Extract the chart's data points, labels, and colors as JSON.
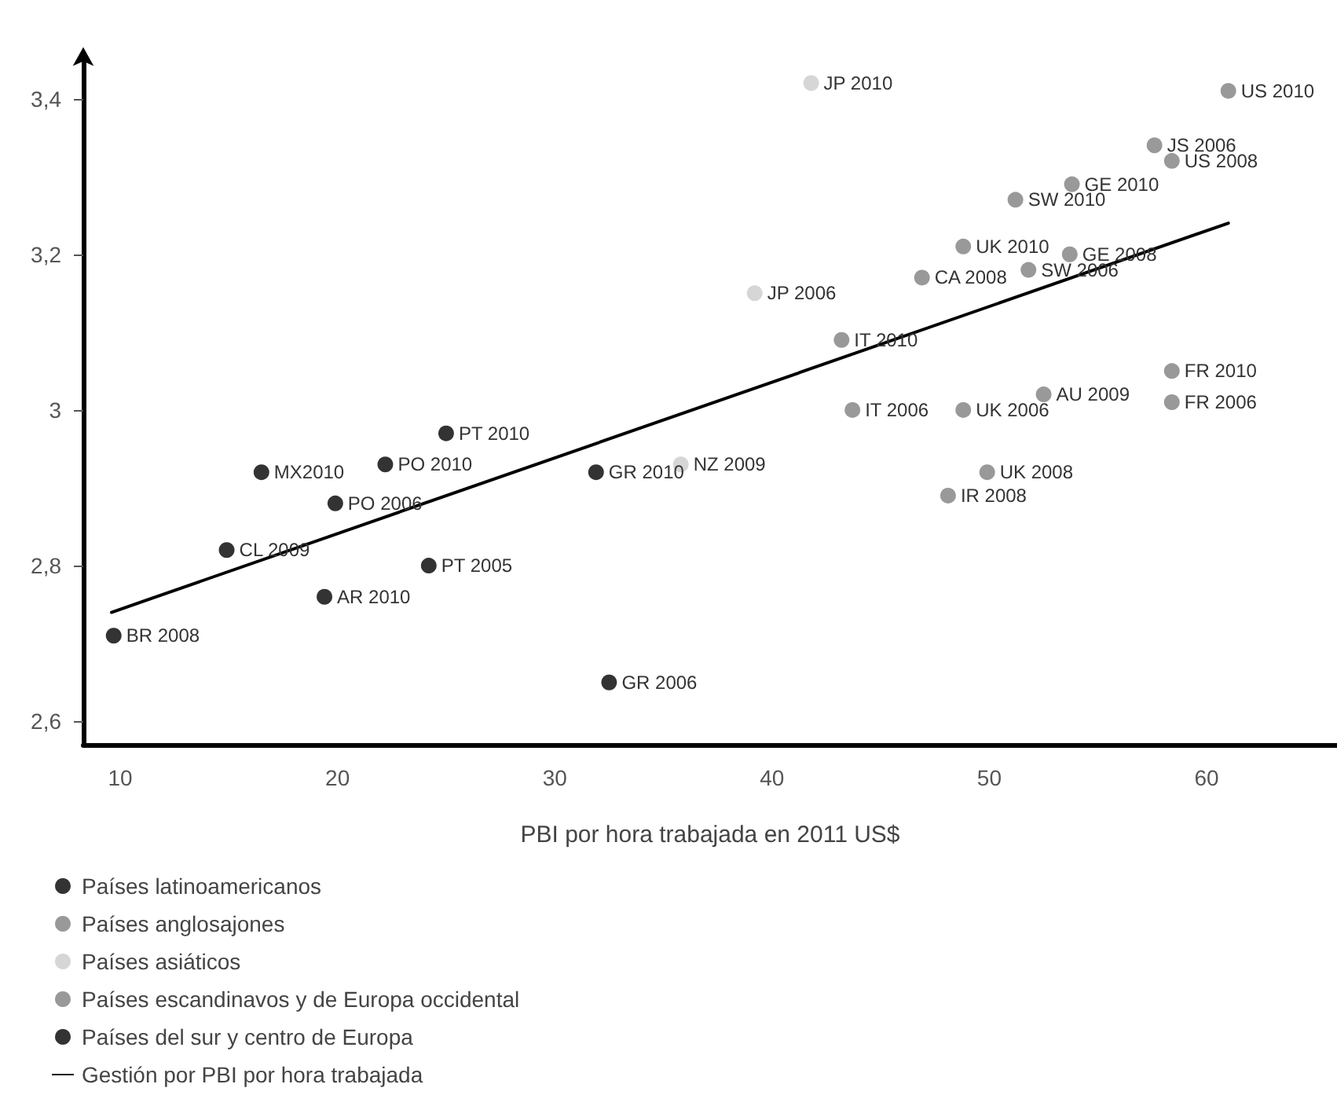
{
  "chart_data": {
    "type": "scatter",
    "xlabel": "PBI por hora trabajada en 2011 US$",
    "xlim": [
      8.3,
      66
    ],
    "xticks": [
      10,
      20,
      30,
      40,
      50,
      60
    ],
    "ylim": [
      2.57,
      3.45
    ],
    "yticks": [
      {
        "value": 2.6,
        "label": "2,6"
      },
      {
        "value": 2.8,
        "label": "2,8"
      },
      {
        "value": 3,
        "label": "3"
      },
      {
        "value": 3.2,
        "label": "3,2"
      },
      {
        "value": 3.4,
        "label": "3,4"
      }
    ],
    "grid": false,
    "legend": "bottom left",
    "marker": "circle",
    "series": [
      {
        "name": "Países latinoamericanos",
        "color": "#000000",
        "x": [
          9.7,
          14.9,
          16.5,
          19.4
        ],
        "values": [
          2.71,
          2.82,
          2.92,
          2.76
        ]
      },
      {
        "name": "Países anglosajones",
        "color": "#808080",
        "x": [
          61.0,
          57.6,
          58.4,
          48.8,
          46.9,
          52.5,
          48.8,
          49.9,
          48.1
        ],
        "values": [
          3.41,
          3.34,
          3.32,
          3.21,
          3.17,
          3.02,
          3.0,
          2.92,
          2.89
        ]
      },
      {
        "name": "Países asiáticos",
        "color": "#cccccc",
        "x": [
          41.8,
          39.2,
          35.8
        ],
        "values": [
          3.42,
          3.15,
          2.93
        ]
      },
      {
        "name": "Países escandinavos y de Europa occidental",
        "color": "#808080",
        "x": [
          53.8,
          51.2,
          53.7,
          51.8,
          43.2,
          58.4,
          58.4,
          43.7
        ],
        "values": [
          3.29,
          3.27,
          3.2,
          3.18,
          3.09,
          3.05,
          3.01,
          3.0
        ]
      },
      {
        "name": "Países del sur y centro de Europa",
        "color": "#000000",
        "x": [
          19.9,
          22.2,
          25.0,
          24.2,
          31.9,
          32.5
        ],
        "values": [
          2.88,
          2.93,
          2.97,
          2.8,
          2.92,
          2.65
        ]
      },
      {
        "name": "Gestión por PBI por hora trabajada",
        "type": "line",
        "color": "#000000",
        "marker": "none",
        "line_style": "solid",
        "x": [
          9.6,
          61.0
        ],
        "values": [
          2.74,
          3.24
        ]
      }
    ],
    "annotations": [
      {
        "text": "BR 2008",
        "x": 9.7,
        "y": 2.71
      },
      {
        "text": "CL 2009",
        "x": 14.9,
        "y": 2.82
      },
      {
        "text": "MX2010",
        "x": 16.5,
        "y": 2.92
      },
      {
        "text": "AR 2010",
        "x": 19.4,
        "y": 2.76
      },
      {
        "text": "US 2010",
        "x": 61.0,
        "y": 3.41
      },
      {
        "text": "JS 2006",
        "x": 57.6,
        "y": 3.34
      },
      {
        "text": "US 2008",
        "x": 58.4,
        "y": 3.32
      },
      {
        "text": "UK 2010",
        "x": 48.8,
        "y": 3.21
      },
      {
        "text": "CA 2008",
        "x": 46.9,
        "y": 3.17
      },
      {
        "text": "AU 2009",
        "x": 52.5,
        "y": 3.02
      },
      {
        "text": "UK 2006",
        "x": 48.8,
        "y": 3.0
      },
      {
        "text": "UK 2008",
        "x": 49.9,
        "y": 2.92
      },
      {
        "text": "IR 2008",
        "x": 48.1,
        "y": 2.89
      },
      {
        "text": "JP 2010",
        "x": 41.8,
        "y": 3.42
      },
      {
        "text": "JP 2006",
        "x": 39.2,
        "y": 3.15
      },
      {
        "text": "NZ 2009",
        "x": 35.8,
        "y": 2.93
      },
      {
        "text": "GE 2010",
        "x": 53.8,
        "y": 3.29
      },
      {
        "text": "SW 2010",
        "x": 51.2,
        "y": 3.27
      },
      {
        "text": "GE 2008",
        "x": 53.7,
        "y": 3.2
      },
      {
        "text": "SW 2006",
        "x": 51.8,
        "y": 3.18
      },
      {
        "text": "IT 2010",
        "x": 43.2,
        "y": 3.09
      },
      {
        "text": "FR 2010",
        "x": 58.4,
        "y": 3.05
      },
      {
        "text": "FR 2006",
        "x": 58.4,
        "y": 3.01
      },
      {
        "text": "IT 2006",
        "x": 43.7,
        "y": 3.0
      },
      {
        "text": "PO 2006",
        "x": 19.9,
        "y": 2.88
      },
      {
        "text": "PO 2010",
        "x": 22.2,
        "y": 2.93
      },
      {
        "text": "PT 2010",
        "x": 25.0,
        "y": 2.97
      },
      {
        "text": "PT 2005",
        "x": 24.2,
        "y": 2.8
      },
      {
        "text": "GR 2010",
        "x": 31.9,
        "y": 2.92
      },
      {
        "text": "GR 2006",
        "x": 32.5,
        "y": 2.65
      }
    ]
  }
}
